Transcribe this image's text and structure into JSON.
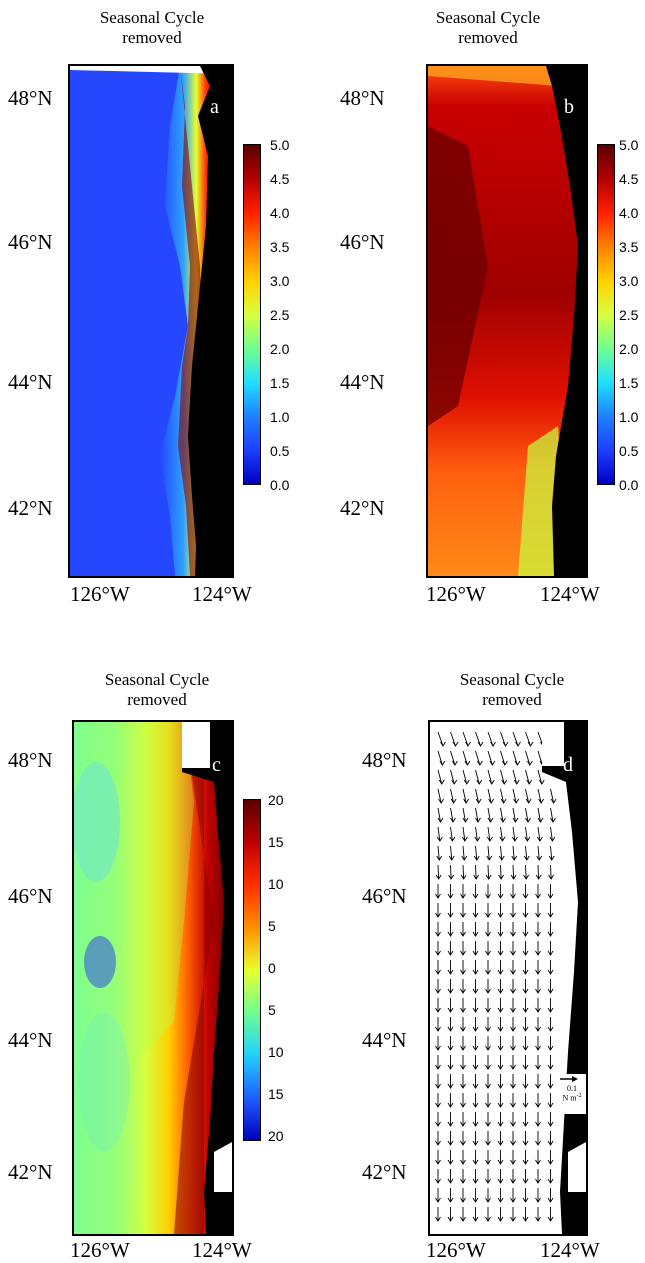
{
  "panels": [
    {
      "letter": "a",
      "title_line1": "Seasonal Cycle",
      "title_line2": "removed",
      "lat_labels": [
        "48°N",
        "46°N",
        "44°N",
        "42°N"
      ],
      "lon_labels": [
        "126°W",
        "124°W"
      ],
      "colorbar": {
        "ticks": [
          "5.0",
          "4.5",
          "4.0",
          "3.5",
          "3.0",
          "2.5",
          "2.0",
          "1.5",
          "1.0",
          "0.5",
          "0.0"
        ],
        "colors": [
          "#5b0000",
          "#b30000",
          "#ff2000",
          "#ff8000",
          "#ffd000",
          "#d8ff40",
          "#70ff90",
          "#20e0ff",
          "#2080ff",
          "#1c40ff",
          "#0000c0"
        ]
      }
    },
    {
      "letter": "b",
      "title_line1": "Seasonal Cycle",
      "title_line2": "removed",
      "lat_labels": [
        "48°N",
        "46°N",
        "44°N",
        "42°N"
      ],
      "lon_labels": [
        "126°W",
        "124°W"
      ],
      "colorbar": {
        "ticks": [
          "5.0",
          "4.5",
          "4.0",
          "3.5",
          "3.0",
          "2.5",
          "2.0",
          "1.5",
          "1.0",
          "0.5",
          "0.0"
        ],
        "colors": [
          "#5b0000",
          "#b30000",
          "#ff2000",
          "#ff8000",
          "#ffd000",
          "#d8ff40",
          "#70ff90",
          "#20e0ff",
          "#2080ff",
          "#1c40ff",
          "#0000c0"
        ]
      }
    },
    {
      "letter": "c",
      "title_line1": "Seasonal Cycle",
      "title_line2": "removed",
      "lat_labels": [
        "48°N",
        "46°N",
        "44°N",
        "42°N"
      ],
      "lon_labels": [
        "126°W",
        "124°W"
      ],
      "colorbar": {
        "ticks": [
          "20",
          "15",
          "10",
          "5",
          "0",
          "5",
          "10",
          "15",
          "20"
        ],
        "colors": [
          "#5b0000",
          "#c00000",
          "#ff3000",
          "#ff9000",
          "#e8ff30",
          "#70ff90",
          "#20d0ff",
          "#2060ff",
          "#0000c0"
        ]
      }
    },
    {
      "letter": "d",
      "title_line1": "Seasonal Cycle",
      "title_line2": "removed",
      "lat_labels": [
        "48°N",
        "46°N",
        "44°N",
        "42°N"
      ],
      "lon_labels": [
        "126°W",
        "124°W"
      ],
      "scale_value": "0.1",
      "scale_unit": "N m",
      "scale_exp": "-2"
    }
  ]
}
